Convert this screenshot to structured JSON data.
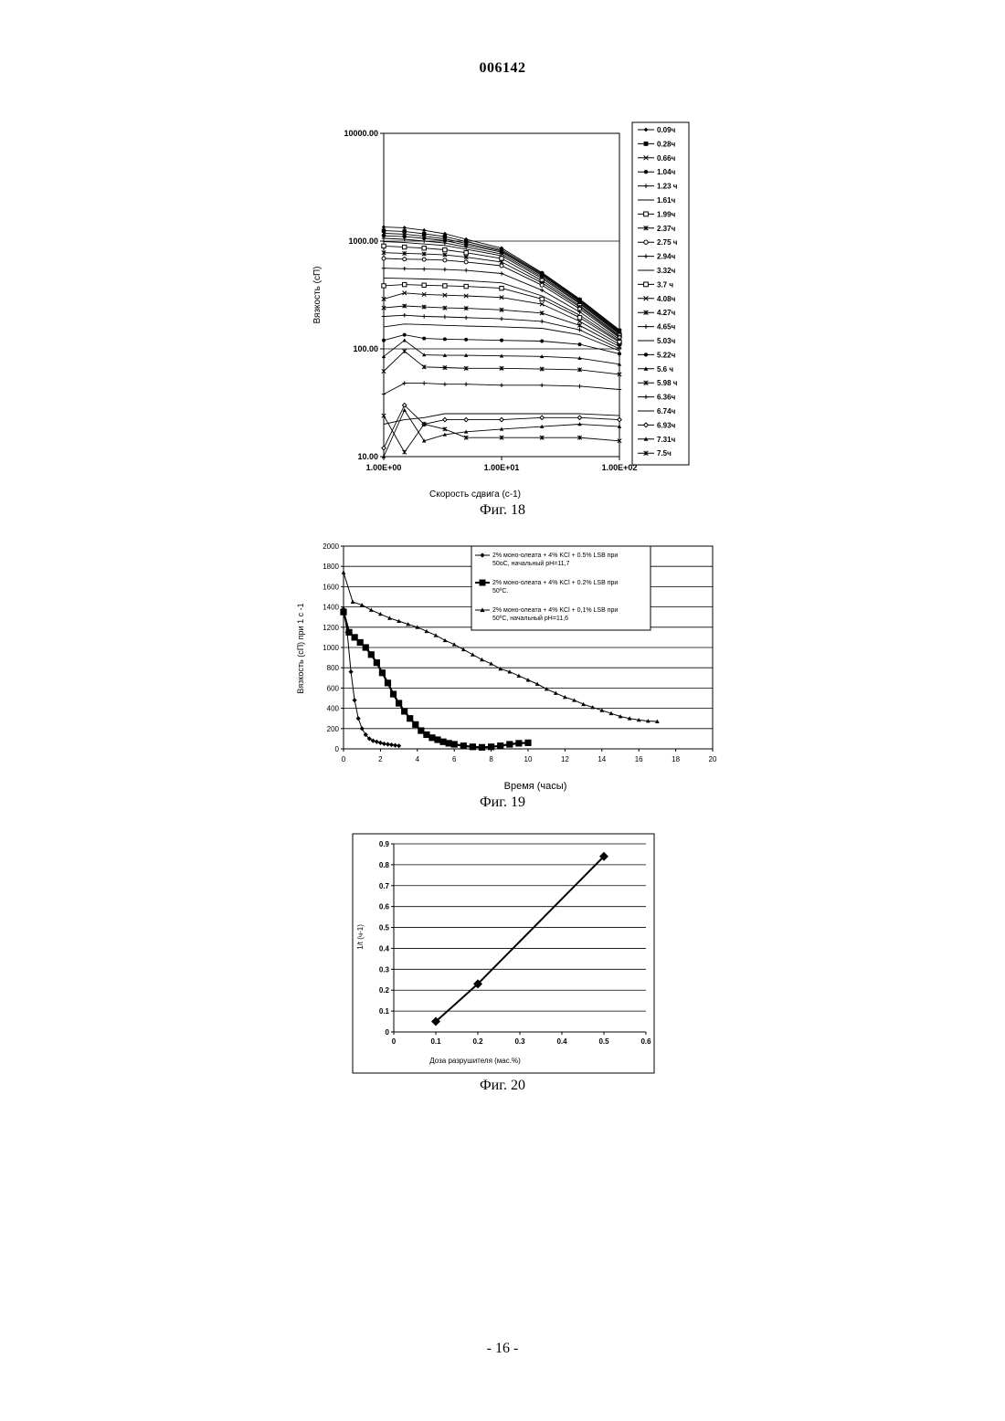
{
  "page": {
    "doc_number": "006142",
    "page_label": "- 16 -"
  },
  "figures": [
    {
      "caption": "Фиг. 18"
    },
    {
      "caption": "Фиг. 19"
    },
    {
      "caption": "Фиг. 20"
    }
  ],
  "chart_data": [
    {
      "type": "line",
      "title": "",
      "xlabel": "Скорость сдвига (c-1)",
      "ylabel": "Вязкость (сП)",
      "x_scale": "log",
      "y_scale": "log",
      "xlim": [
        1,
        100
      ],
      "ylim": [
        10,
        10000
      ],
      "xticks": [
        "1.00E+00",
        "1.00E+01",
        "1.00E+02"
      ],
      "yticks": [
        "10.00",
        "100.00",
        "1000.00",
        "10000.00"
      ],
      "legend_position": "right",
      "grid": true,
      "x": [
        1,
        1.5,
        2.2,
        3.3,
        5,
        10,
        22,
        46,
        100
      ],
      "series": [
        {
          "name": "0.09ч",
          "marker": "diamond",
          "values": [
            1350,
            1330,
            1260,
            1170,
            1040,
            860,
            510,
            290,
            150
          ]
        },
        {
          "name": "0.28ч",
          "marker": "square",
          "values": [
            1250,
            1230,
            1170,
            1100,
            990,
            830,
            500,
            285,
            148
          ]
        },
        {
          "name": "0.66ч",
          "marker": "x",
          "values": [
            1180,
            1160,
            1110,
            1050,
            950,
            810,
            490,
            280,
            145
          ]
        },
        {
          "name": "1.04ч",
          "marker": "dot",
          "values": [
            1120,
            1100,
            1060,
            1010,
            920,
            790,
            480,
            275,
            142
          ]
        },
        {
          "name": "1.23 ч",
          "marker": "plus",
          "values": [
            1060,
            1040,
            1000,
            960,
            880,
            760,
            465,
            268,
            140
          ]
        },
        {
          "name": "1.61ч",
          "marker": "none",
          "values": [
            990,
            970,
            940,
            910,
            840,
            730,
            450,
            262,
            137
          ]
        },
        {
          "name": "1.99ч",
          "marker": "open-square",
          "values": [
            900,
            880,
            860,
            830,
            780,
            690,
            430,
            252,
            133
          ]
        },
        {
          "name": "2.37ч",
          "marker": "xstar",
          "values": [
            780,
            770,
            760,
            745,
            710,
            640,
            410,
            245,
            130
          ]
        },
        {
          "name": "2.75 ч",
          "marker": "open-circle",
          "values": [
            690,
            680,
            675,
            665,
            640,
            590,
            390,
            235,
            127
          ]
        },
        {
          "name": "2.94ч",
          "marker": "plus",
          "values": [
            560,
            555,
            550,
            545,
            535,
            500,
            350,
            220,
            122
          ]
        },
        {
          "name": "3.32ч",
          "marker": "none",
          "values": [
            455,
            450,
            445,
            440,
            430,
            410,
            310,
            205,
            118
          ]
        },
        {
          "name": "3.7 ч",
          "marker": "open-square",
          "values": [
            385,
            395,
            390,
            385,
            380,
            365,
            290,
            195,
            115
          ]
        },
        {
          "name": "4.08ч",
          "marker": "x",
          "values": [
            290,
            330,
            320,
            315,
            310,
            300,
            260,
            180,
            110
          ]
        },
        {
          "name": "4.27ч",
          "marker": "xstar",
          "values": [
            240,
            250,
            245,
            240,
            238,
            230,
            215,
            165,
            105
          ]
        },
        {
          "name": "4.65ч",
          "marker": "plus",
          "values": [
            200,
            205,
            200,
            198,
            195,
            190,
            180,
            150,
            100
          ]
        },
        {
          "name": "5.03ч",
          "marker": "none",
          "values": [
            160,
            170,
            168,
            165,
            163,
            160,
            155,
            135,
            96
          ]
        },
        {
          "name": "5.22ч",
          "marker": "dot",
          "values": [
            120,
            135,
            125,
            123,
            122,
            120,
            118,
            110,
            90
          ]
        },
        {
          "name": "5.6 ч",
          "marker": "triangle",
          "values": [
            85,
            120,
            88,
            87,
            87,
            86,
            85,
            82,
            72
          ]
        },
        {
          "name": "5.98 ч",
          "marker": "asterisk",
          "values": [
            62,
            95,
            68,
            67,
            66,
            66,
            65,
            64,
            58
          ]
        },
        {
          "name": "6.36ч",
          "marker": "plus",
          "values": [
            38,
            48,
            48,
            47,
            47,
            46,
            46,
            45,
            42
          ]
        },
        {
          "name": "6.74ч",
          "marker": "none",
          "values": [
            20,
            22,
            23,
            25,
            25,
            25,
            25,
            25,
            24
          ]
        },
        {
          "name": "6.93ч",
          "marker": "open-diamond",
          "values": [
            12,
            30,
            20,
            22,
            22,
            22,
            23,
            23,
            22
          ]
        },
        {
          "name": "7.31ч",
          "marker": "triangle",
          "values": [
            10,
            27,
            14,
            16,
            17,
            18,
            19,
            20,
            19
          ]
        },
        {
          "name": "7.5ч",
          "marker": "asterisk",
          "values": [
            24,
            11,
            20,
            18,
            15,
            15,
            15,
            15,
            14
          ]
        }
      ]
    },
    {
      "type": "scatter",
      "title": "",
      "xlabel": "Время (часы)",
      "ylabel": "Вязкость (сП) при 1 с -1",
      "xlim": [
        0,
        20
      ],
      "ylim": [
        0,
        2000
      ],
      "xticks": [
        "0",
        "2",
        "4",
        "6",
        "8",
        "10",
        "12",
        "14",
        "16",
        "18",
        "20"
      ],
      "yticks": [
        "0",
        "200",
        "400",
        "600",
        "800",
        "1000",
        "1200",
        "1400",
        "1600",
        "1800",
        "2000"
      ],
      "legend_position": "top-right",
      "grid": true,
      "series": [
        {
          "name": "2% моно-олеата + 4% KCl + 0.5% LSB при 50оС, начальный pH=11,7",
          "marker": "diamond",
          "x": [
            0,
            0.2,
            0.4,
            0.6,
            0.8,
            1.0,
            1.2,
            1.4,
            1.6,
            1.8,
            2.0,
            2.2,
            2.4,
            2.6,
            2.8,
            3.0
          ],
          "values": [
            1380,
            1150,
            760,
            480,
            300,
            200,
            140,
            100,
            80,
            70,
            60,
            50,
            45,
            40,
            35,
            30
          ]
        },
        {
          "name": "2% моно-олеата + 4% KCl + 0.2% LSB при 50ºC.",
          "marker": "square",
          "x": [
            0,
            0.3,
            0.6,
            0.9,
            1.2,
            1.5,
            1.8,
            2.1,
            2.4,
            2.7,
            3.0,
            3.3,
            3.6,
            3.9,
            4.2,
            4.5,
            4.8,
            5.1,
            5.4,
            5.7,
            6.0,
            6.5,
            7.0,
            7.5,
            8.0,
            8.5,
            9.0,
            9.5,
            10.0
          ],
          "values": [
            1350,
            1150,
            1100,
            1050,
            1000,
            930,
            850,
            750,
            650,
            540,
            450,
            370,
            300,
            240,
            180,
            140,
            110,
            90,
            70,
            55,
            45,
            30,
            20,
            15,
            20,
            30,
            45,
            55,
            60
          ]
        },
        {
          "name": "2% моно-олеата + 4% KCl + 0,1% LSB при 50ºC, начальный pH=11,6",
          "marker": "triangle",
          "x": [
            0,
            0.5,
            1.0,
            1.5,
            2.0,
            2.5,
            3.0,
            3.5,
            4.0,
            4.5,
            5.0,
            5.5,
            6.0,
            6.5,
            7.0,
            7.5,
            8.0,
            8.5,
            9.0,
            9.5,
            10.0,
            10.5,
            11.0,
            11.5,
            12.0,
            12.5,
            13.0,
            13.5,
            14.0,
            14.5,
            15.0,
            15.5,
            16.0,
            16.5,
            17.0
          ],
          "values": [
            1740,
            1450,
            1420,
            1370,
            1330,
            1290,
            1260,
            1230,
            1200,
            1160,
            1120,
            1070,
            1030,
            980,
            930,
            880,
            840,
            790,
            760,
            720,
            680,
            640,
            590,
            550,
            510,
            480,
            440,
            410,
            380,
            350,
            320,
            300,
            285,
            275,
            270
          ]
        }
      ]
    },
    {
      "type": "line",
      "title": "",
      "xlabel": "Доза разрушителя (мас.%)",
      "ylabel": "1/t (ч-1)",
      "xlim": [
        0,
        0.6
      ],
      "ylim": [
        0,
        0.9
      ],
      "xticks": [
        "0",
        "0.1",
        "0.2",
        "0.3",
        "0.4",
        "0.5",
        "0.6"
      ],
      "yticks": [
        "0",
        "0.1",
        "0.2",
        "0.3",
        "0.4",
        "0.5",
        "0.6",
        "0.7",
        "0.8",
        "0.9"
      ],
      "grid": true,
      "series": [
        {
          "marker": "diamond",
          "x": [
            0.1,
            0.2,
            0.5
          ],
          "values": [
            0.05,
            0.23,
            0.84
          ]
        }
      ]
    }
  ]
}
